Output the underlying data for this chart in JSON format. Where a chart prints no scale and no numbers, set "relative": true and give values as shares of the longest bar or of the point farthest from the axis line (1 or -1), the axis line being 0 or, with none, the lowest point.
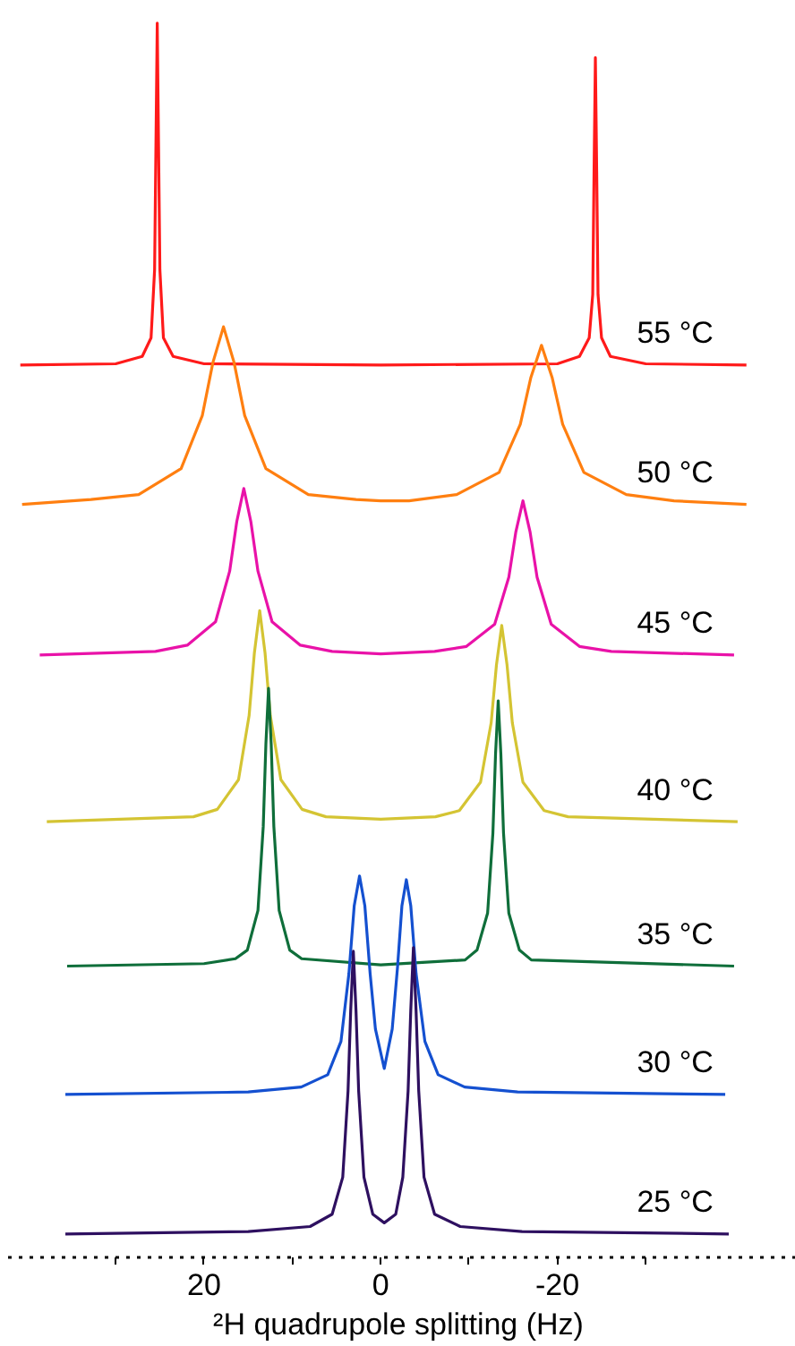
{
  "chart_data": {
    "type": "line",
    "relative": true,
    "xlabel": "²H quadrupole splitting (Hz)",
    "xlim": [
      43,
      -47
    ],
    "xticks": [
      {
        "value": 30,
        "label": null
      },
      20,
      {
        "value": 10,
        "label": null
      },
      0,
      {
        "value": -10,
        "label": null
      },
      -20,
      {
        "value": -30,
        "label": null
      }
    ],
    "grid": false,
    "marker": "none",
    "line_style": "solid",
    "series": [
      {
        "name": "55 °C",
        "color": "#ff1a1a",
        "x": [
          40.8,
          30,
          27,
          26,
          25.6,
          25.45,
          25.3,
          25.15,
          25.0,
          24.6,
          23.5,
          20,
          0,
          -20,
          -22.5,
          -23.6,
          -24.0,
          -24.15,
          -24.3,
          -24.45,
          -24.6,
          -25,
          -26,
          -30,
          -41.4
        ],
        "values": [
          0.723,
          0.724,
          0.73,
          0.745,
          0.8,
          0.9,
          1.0,
          0.9,
          0.8,
          0.745,
          0.73,
          0.724,
          0.723,
          0.724,
          0.73,
          0.745,
          0.78,
          0.88,
          0.972,
          0.88,
          0.78,
          0.745,
          0.73,
          0.724,
          0.723
        ]
      },
      {
        "name": "50 °C",
        "color": "#ff7f10",
        "x": [
          40.6,
          32.8,
          27.4,
          22.6,
          20.2,
          19.0,
          17.8,
          16.6,
          15.4,
          13.0,
          8.2,
          2.8,
          0,
          -3.2,
          -8.6,
          -13.4,
          -15.8,
          -17.0,
          -18.2,
          -19.4,
          -20.6,
          -23.0,
          -27.8,
          -33.2,
          -41.4
        ],
        "values": [
          0.61,
          0.614,
          0.618,
          0.639,
          0.682,
          0.725,
          0.754,
          0.725,
          0.682,
          0.639,
          0.618,
          0.614,
          0.613,
          0.613,
          0.618,
          0.636,
          0.675,
          0.713,
          0.739,
          0.713,
          0.675,
          0.636,
          0.618,
          0.613,
          0.61
        ]
      },
      {
        "name": "45 °C",
        "color": "#e912a8",
        "x": [
          38.6,
          25.5,
          21.9,
          18.7,
          17.1,
          16.3,
          15.5,
          14.7,
          13.9,
          12.3,
          9.1,
          5.5,
          0,
          -6.1,
          -9.7,
          -12.9,
          -14.5,
          -15.3,
          -16.1,
          -16.9,
          -17.7,
          -19.3,
          -22.5,
          -26.1,
          -40.0
        ],
        "values": [
          0.488,
          0.491,
          0.496,
          0.515,
          0.556,
          0.596,
          0.623,
          0.596,
          0.556,
          0.515,
          0.496,
          0.491,
          0.489,
          0.491,
          0.495,
          0.513,
          0.551,
          0.588,
          0.613,
          0.588,
          0.551,
          0.513,
          0.495,
          0.491,
          0.488
        ]
      },
      {
        "name": "40 °C",
        "color": "#d4c433",
        "x": [
          37.8,
          21.2,
          18.5,
          16.1,
          14.9,
          14.3,
          13.7,
          13.1,
          12.5,
          11.3,
          8.9,
          6.2,
          0,
          -6.2,
          -8.9,
          -11.3,
          -12.5,
          -13.1,
          -13.7,
          -14.3,
          -14.9,
          -16.1,
          -18.5,
          -21.2,
          -40.4
        ],
        "values": [
          0.353,
          0.357,
          0.363,
          0.387,
          0.439,
          0.49,
          0.524,
          0.49,
          0.439,
          0.387,
          0.363,
          0.357,
          0.355,
          0.357,
          0.362,
          0.385,
          0.433,
          0.48,
          0.512,
          0.48,
          0.433,
          0.385,
          0.362,
          0.357,
          0.353
        ]
      },
      {
        "name": "35 °C",
        "color": "#0f6e3a",
        "x": [
          35.5,
          20,
          16.45,
          15.1,
          13.9,
          13.3,
          13.0,
          12.7,
          12.4,
          12.1,
          11.5,
          10.3,
          8.95,
          0,
          -9.55,
          -10.9,
          -12.1,
          -12.7,
          -13.0,
          -13.3,
          -13.6,
          -13.9,
          -14.5,
          -15.7,
          -17.05,
          -40.0
        ],
        "values": [
          0.236,
          0.238,
          0.242,
          0.249,
          0.281,
          0.349,
          0.416,
          0.461,
          0.416,
          0.349,
          0.281,
          0.249,
          0.242,
          0.237,
          0.241,
          0.249,
          0.279,
          0.344,
          0.408,
          0.451,
          0.408,
          0.344,
          0.279,
          0.249,
          0.241,
          0.236
        ]
      },
      {
        "name": "30 °C",
        "color": "#1450d0",
        "x": [
          35.7,
          15,
          9,
          6,
          4.5,
          3.6,
          3.0,
          2.4,
          1.8,
          1.2,
          0.6,
          -0.4,
          -1.3,
          -1.9,
          -2.4,
          -2.9,
          -3.4,
          -4.0,
          -5.0,
          -6.5,
          -9.5,
          -15.5,
          -39.0
        ],
        "values": [
          0.132,
          0.134,
          0.138,
          0.148,
          0.175,
          0.23,
          0.285,
          0.309,
          0.285,
          0.23,
          0.185,
          0.153,
          0.185,
          0.235,
          0.285,
          0.306,
          0.285,
          0.23,
          0.175,
          0.148,
          0.138,
          0.134,
          0.132
        ]
      },
      {
        "name": "25 °C",
        "color": "#2e1060",
        "x": [
          35.7,
          15,
          8,
          5.5,
          4.3,
          3.7,
          3.4,
          3.1,
          2.8,
          2.5,
          1.9,
          0.9,
          -0.4,
          -1.7,
          -2.5,
          -3.1,
          -3.4,
          -3.7,
          -4.0,
          -4.3,
          -4.9,
          -6.1,
          -9,
          -16,
          -39.4
        ],
        "values": [
          0.019,
          0.021,
          0.025,
          0.035,
          0.065,
          0.135,
          0.2,
          0.248,
          0.2,
          0.135,
          0.065,
          0.035,
          0.028,
          0.035,
          0.065,
          0.135,
          0.2,
          0.251,
          0.2,
          0.135,
          0.065,
          0.035,
          0.025,
          0.021,
          0.019
        ]
      }
    ]
  }
}
